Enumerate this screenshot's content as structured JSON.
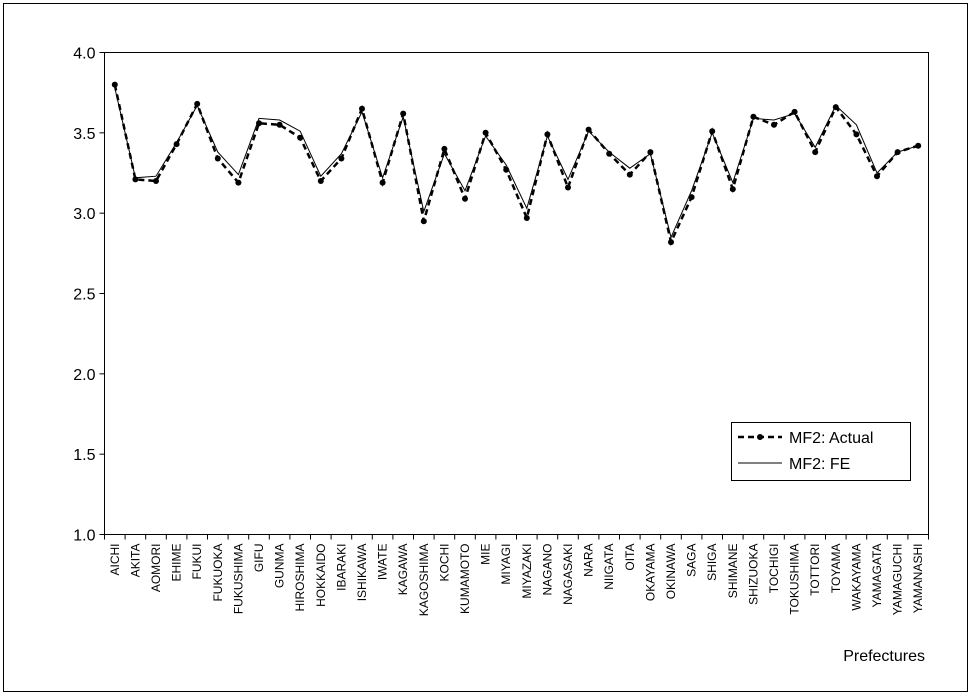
{
  "chart_data": {
    "type": "line",
    "title": "",
    "xlabel": "Prefectures",
    "ylabel": "",
    "ylim": [
      1.0,
      4.0
    ],
    "yticks": [
      "1.0",
      "1.5",
      "2.0",
      "2.5",
      "3.0",
      "3.5",
      "4.0"
    ],
    "grid": false,
    "legend_position": "lower-right",
    "categories": [
      "AICHI",
      "AKITA",
      "AOMORI",
      "EHIME",
      "FUKUI",
      "FUKUOKA",
      "FUKUSHIMA",
      "GIFU",
      "GUNMA",
      "HIROSHIMA",
      "HOKKAIDO",
      "IBARAKI",
      "ISHIKAWA",
      "IWATE",
      "KAGAWA",
      "KAGOSHIMA",
      "KOCHI",
      "KUMAMOTO",
      "MIE",
      "MIYAGI",
      "MIYAZAKI",
      "NAGANO",
      "NAGASAKI",
      "NARA",
      "NIIGATA",
      "OITA",
      "OKAYAMA",
      "OKINAWA",
      "SAGA",
      "SHIGA",
      "SHIMANE",
      "SHIZUOKA",
      "TOCHIGI",
      "TOKUSHIMA",
      "TOTTORI",
      "TOYAMA",
      "WAKAYAMA",
      "YAMAGATA",
      "YAMAGUCHI",
      "YAMANASHI"
    ],
    "series": [
      {
        "name": "MF2: Actual",
        "style": "dashed-markers",
        "color": "#000000",
        "values": [
          3.8,
          3.21,
          3.2,
          3.43,
          3.68,
          3.34,
          3.19,
          3.56,
          3.55,
          3.47,
          3.2,
          3.34,
          3.65,
          3.19,
          3.62,
          2.95,
          3.4,
          3.09,
          3.5,
          3.27,
          2.97,
          3.49,
          3.16,
          3.52,
          3.37,
          3.24,
          3.38,
          2.82,
          3.1,
          3.51,
          3.15,
          3.6,
          3.55,
          3.63,
          3.38,
          3.66,
          3.49,
          3.23,
          3.38,
          3.42
        ]
      },
      {
        "name": "MF2: FE",
        "style": "solid",
        "color": "#000000",
        "values": [
          3.78,
          3.22,
          3.23,
          3.44,
          3.67,
          3.38,
          3.24,
          3.59,
          3.58,
          3.51,
          3.23,
          3.37,
          3.63,
          3.22,
          3.6,
          3.01,
          3.37,
          3.14,
          3.48,
          3.3,
          3.03,
          3.48,
          3.21,
          3.51,
          3.38,
          3.28,
          3.37,
          2.85,
          3.14,
          3.5,
          3.19,
          3.59,
          3.58,
          3.62,
          3.41,
          3.67,
          3.55,
          3.25,
          3.38,
          3.42
        ]
      }
    ]
  }
}
